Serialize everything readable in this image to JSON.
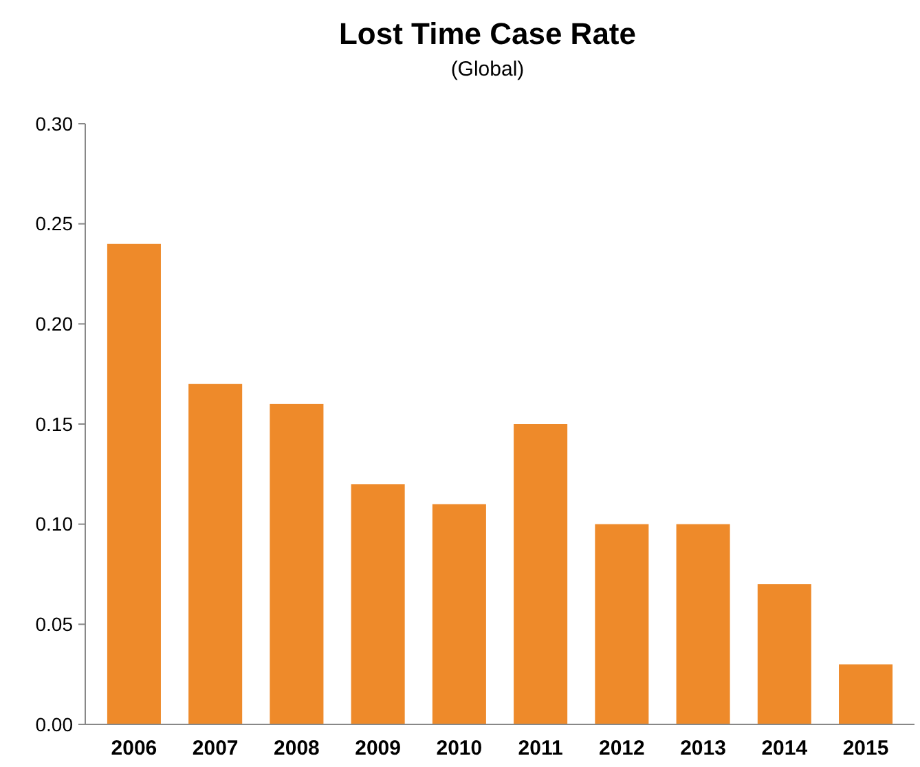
{
  "chart_data": {
    "type": "bar",
    "title": "Lost Time Case Rate",
    "subtitle": "(Global)",
    "categories": [
      "2006",
      "2007",
      "2008",
      "2009",
      "2010",
      "2011",
      "2012",
      "2013",
      "2014",
      "2015"
    ],
    "values": [
      0.24,
      0.17,
      0.16,
      0.12,
      0.11,
      0.15,
      0.1,
      0.1,
      0.07,
      0.03
    ],
    "color": "#ee8a2a",
    "ylim": [
      0,
      0.3
    ],
    "yticks": [
      {
        "value": 0,
        "label": "0.00"
      },
      {
        "value": 0.05,
        "label": "0.05"
      },
      {
        "value": 0.1,
        "label": "0.10"
      },
      {
        "value": 0.15,
        "label": "0.15"
      },
      {
        "value": 0.2,
        "label": "0.20"
      },
      {
        "value": 0.25,
        "label": "0.25"
      },
      {
        "value": 0.3,
        "label": "0.30"
      }
    ],
    "grid": false
  }
}
